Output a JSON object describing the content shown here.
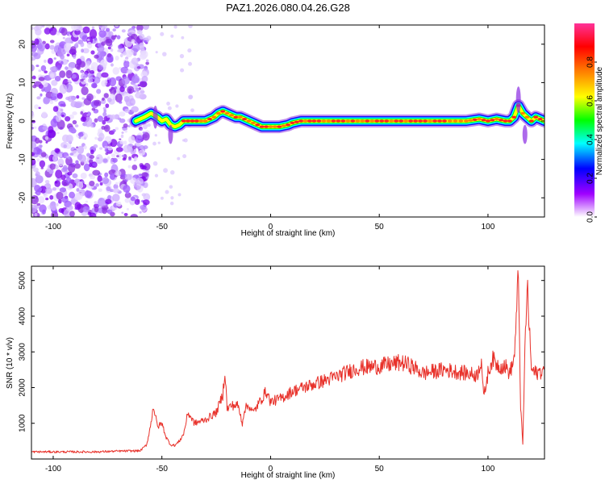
{
  "title": "PAZ1.2026.080.04.26.G28",
  "chart_data": [
    {
      "type": "heatmap",
      "xlabel": "Height of straight line (km)",
      "ylabel": "Frequency (Hz)",
      "xlim": [
        -110,
        126
      ],
      "ylim": [
        -25,
        25
      ],
      "x_ticks": [
        -100,
        -50,
        0,
        50,
        100
      ],
      "y_ticks": [
        -20,
        -10,
        0,
        10,
        20
      ],
      "ridge": {
        "x": [
          -62,
          -58,
          -55,
          -52,
          -50,
          -48,
          -46,
          -44,
          -42,
          -40,
          -36,
          -30,
          -26,
          -24,
          -22,
          -20,
          -18,
          -16,
          -14,
          -12,
          -10,
          -8,
          -6,
          -4,
          -2,
          0,
          4,
          8,
          10,
          14,
          20,
          40,
          60,
          80,
          90,
          96,
          100,
          104,
          108,
          110,
          112,
          114,
          116,
          118,
          120,
          122,
          126
        ],
        "y": [
          0,
          1,
          2,
          1,
          0,
          0.5,
          -1,
          -1.5,
          -1,
          0,
          0,
          0,
          1,
          2,
          2.5,
          2,
          1.5,
          1,
          1,
          0.5,
          0,
          -0.5,
          -1,
          -1.5,
          -1.5,
          -1.5,
          -1.5,
          -1,
          -0.5,
          0,
          0,
          0,
          0,
          0,
          0,
          0.5,
          0,
          0.5,
          0,
          0,
          1,
          4,
          2,
          1,
          0,
          1,
          0
        ]
      },
      "noise_region_x": [
        -110,
        -58
      ]
    },
    {
      "type": "line",
      "xlabel": "Height of straight line (km)",
      "ylabel": "SNR (10 * v/v)",
      "xlim": [
        -110,
        126
      ],
      "ylim": [
        0,
        5400
      ],
      "x_ticks": [
        -100,
        -50,
        0,
        50,
        100
      ],
      "y_ticks": [
        1000,
        2000,
        3000,
        4000,
        5000
      ],
      "color": "#e8312a",
      "series": [
        {
          "x": [
            -110,
            -100,
            -90,
            -80,
            -70,
            -60,
            -57,
            -55,
            -54,
            -53,
            -52,
            -50,
            -48,
            -46,
            -44,
            -42,
            -40,
            -38,
            -35,
            -30,
            -25,
            -22,
            -21,
            -20,
            -18,
            -15,
            -13,
            -12,
            -10,
            -8,
            -5,
            -2,
            0,
            5,
            10,
            15,
            20,
            25,
            30,
            40,
            50,
            55,
            60,
            65,
            70,
            75,
            80,
            85,
            90,
            95,
            97,
            98,
            100,
            102,
            105,
            108,
            110,
            112,
            113,
            114,
            115,
            116,
            117,
            118,
            120,
            122,
            126
          ],
          "y": [
            200,
            200,
            200,
            200,
            220,
            230,
            400,
            1000,
            1500,
            1200,
            900,
            1000,
            600,
            400,
            380,
            500,
            700,
            1300,
            1000,
            1100,
            1300,
            1800,
            2500,
            1400,
            1500,
            1500,
            1000,
            1400,
            1500,
            1300,
            1600,
            1900,
            1600,
            1700,
            1900,
            2000,
            2100,
            2200,
            2300,
            2550,
            2600,
            2650,
            2700,
            2600,
            2400,
            2450,
            2500,
            2450,
            2400,
            2350,
            2800,
            1700,
            2400,
            2800,
            2600,
            2600,
            2400,
            2800,
            3800,
            5300,
            1500,
            400,
            3000,
            4900,
            2500,
            2400,
            2500
          ]
        }
      ]
    }
  ],
  "colorbar": {
    "label": "Normalized spectral amplitude",
    "ticks": [
      0.0,
      0.2,
      0.4,
      0.6,
      0.8
    ],
    "range": [
      0,
      1
    ],
    "colors": [
      "#ffffff",
      "#9f00ff",
      "#0000ff",
      "#00ffff",
      "#00ff00",
      "#ffff00",
      "#ff8000",
      "#ff0000",
      "#ff3399"
    ]
  }
}
